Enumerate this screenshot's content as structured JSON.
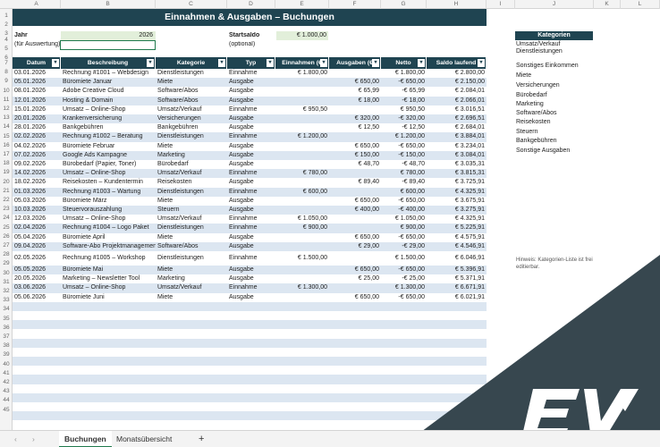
{
  "columns": [
    "A",
    "B",
    "C",
    "D",
    "E",
    "F",
    "G",
    "H",
    "I",
    "J",
    "K",
    "L"
  ],
  "title": "Einnahmen & Ausgaben – Buchungen",
  "jahr_label": "Jahr",
  "jahr_sub": "(für Auswertung)",
  "jahr_value": "2026",
  "startsaldo_label": "Startsaldo",
  "startsaldo_sub": "(optional)",
  "startsaldo_value": "€ 1.000,00",
  "headers": [
    "Datum",
    "Beschreibung",
    "Kategorie",
    "Typ",
    "Einnahmen (€",
    "Ausgaben (€",
    "Netto",
    "Saldo laufend"
  ],
  "rows": [
    [
      "03.01.2026",
      "Rechnung #1001 – Webdesign",
      "Dienstleistungen",
      "Einnahme",
      "€ 1.800,00",
      "",
      "€ 1.800,00",
      "€ 2.800,00"
    ],
    [
      "05.01.2026",
      "Büromiete Januar",
      "Miete",
      "Ausgabe",
      "",
      "€ 650,00",
      "-€ 650,00",
      "€ 2.150,00"
    ],
    [
      "08.01.2026",
      "Adobe Creative Cloud",
      "Software/Abos",
      "Ausgabe",
      "",
      "€ 65,99",
      "-€ 65,99",
      "€ 2.084,01"
    ],
    [
      "12.01.2026",
      "Hosting & Domain",
      "Software/Abos",
      "Ausgabe",
      "",
      "€ 18,00",
      "-€ 18,00",
      "€ 2.066,01"
    ],
    [
      "15.01.2026",
      "Umsatz – Online-Shop",
      "Umsatz/Verkauf",
      "Einnahme",
      "€ 950,50",
      "",
      "€ 950,50",
      "€ 3.016,51"
    ],
    [
      "20.01.2026",
      "Krankenversicherung",
      "Versicherungen",
      "Ausgabe",
      "",
      "€ 320,00",
      "-€ 320,00",
      "€ 2.696,51"
    ],
    [
      "28.01.2026",
      "Bankgebühren",
      "Bankgebühren",
      "Ausgabe",
      "",
      "€ 12,50",
      "-€ 12,50",
      "€ 2.684,01"
    ],
    [
      "02.02.2026",
      "Rechnung #1002 – Beratung",
      "Dienstleistungen",
      "Einnahme",
      "€ 1.200,00",
      "",
      "€ 1.200,00",
      "€ 3.884,01"
    ],
    [
      "04.02.2026",
      "Büromiete Februar",
      "Miete",
      "Ausgabe",
      "",
      "€ 650,00",
      "-€ 650,00",
      "€ 3.234,01"
    ],
    [
      "07.02.2026",
      "Google Ads Kampagne",
      "Marketing",
      "Ausgabe",
      "",
      "€ 150,00",
      "-€ 150,00",
      "€ 3.084,01"
    ],
    [
      "09.02.2026",
      "Bürobedarf (Papier, Toner)",
      "Bürobedarf",
      "Ausgabe",
      "",
      "€ 48,70",
      "-€ 48,70",
      "€ 3.035,31"
    ],
    [
      "14.02.2026",
      "Umsatz – Online-Shop",
      "Umsatz/Verkauf",
      "Einnahme",
      "€ 780,00",
      "",
      "€ 780,00",
      "€ 3.815,31"
    ],
    [
      "18.02.2026",
      "Reisekosten – Kundentermin",
      "Reisekosten",
      "Ausgabe",
      "",
      "€ 89,40",
      "-€ 89,40",
      "€ 3.725,91"
    ],
    [
      "01.03.2026",
      "Rechnung #1003 – Wartung",
      "Dienstleistungen",
      "Einnahme",
      "€ 600,00",
      "",
      "€ 600,00",
      "€ 4.325,91"
    ],
    [
      "05.03.2026",
      "Büromiete März",
      "Miete",
      "Ausgabe",
      "",
      "€ 650,00",
      "-€ 650,00",
      "€ 3.675,91"
    ],
    [
      "10.03.2026",
      "Steuervorauszahlung",
      "Steuern",
      "Ausgabe",
      "",
      "€ 400,00",
      "-€ 400,00",
      "€ 3.275,91"
    ],
    [
      "12.03.2026",
      "Umsatz – Online-Shop",
      "Umsatz/Verkauf",
      "Einnahme",
      "€ 1.050,00",
      "",
      "€ 1.050,00",
      "€ 4.325,91"
    ],
    [
      "02.04.2026",
      "Rechnung #1004 – Logo Paket",
      "Dienstleistungen",
      "Einnahme",
      "€ 900,00",
      "",
      "€ 900,00",
      "€ 5.225,91"
    ],
    [
      "05.04.2026",
      "Büromiete April",
      "Miete",
      "Ausgabe",
      "",
      "€ 650,00",
      "-€ 650,00",
      "€ 4.575,91"
    ],
    [
      "09.04.2026",
      "Software-Abo Projektmanagement",
      "Software/Abos",
      "Ausgabe",
      "",
      "€ 29,00",
      "-€ 29,00",
      "€ 4.546,91"
    ],
    [
      "02.05.2026",
      "Rechnung #1005 – Workshop",
      "Dienstleistungen",
      "Einnahme",
      "€ 1.500,00",
      "",
      "€ 1.500,00",
      "€ 6.046,91"
    ],
    [
      "05.05.2026",
      "Büromiete Mai",
      "Miete",
      "Ausgabe",
      "",
      "€ 650,00",
      "-€ 650,00",
      "€ 5.396,91"
    ],
    [
      "20.05.2026",
      "Marketing – Newsletter Tool",
      "Marketing",
      "Ausgabe",
      "",
      "€ 25,00",
      "-€ 25,00",
      "€ 5.371,91"
    ],
    [
      "03.06.2026",
      "Umsatz – Online-Shop",
      "Umsatz/Verkauf",
      "Einnahme",
      "€ 1.300,00",
      "",
      "€ 1.300,00",
      "€ 6.671,91"
    ],
    [
      "05.06.2026",
      "Büromiete Juni",
      "Miete",
      "Ausgabe",
      "",
      "€ 650,00",
      "-€ 650,00",
      "€ 6.021,91"
    ]
  ],
  "kategorien_title": "Kategorien",
  "kategorien": [
    "Umsatz/Verkauf",
    "Dienstleistungen",
    "Sonstiges Einkommen",
    "Miete",
    "Versicherungen",
    "Bürobedarf",
    "Marketing",
    "Software/Abos",
    "Reisekosten",
    "Steuern",
    "Bankgebühren",
    "Sonstige Ausgaben"
  ],
  "hint": "Hinweis: Kategorien-Liste ist frei editierbar.",
  "tabs": [
    "Buchungen",
    "Monatsübersicht"
  ],
  "add_sheet": "+",
  "nav_prev": "‹",
  "nav_next": "›",
  "colors": {
    "header": "#1f4451",
    "band": "#dce6f1",
    "logo": "#37474f"
  },
  "icons": {
    "logo": "ex-logo-icon",
    "dropdown": "filter-dropdown-icon"
  }
}
